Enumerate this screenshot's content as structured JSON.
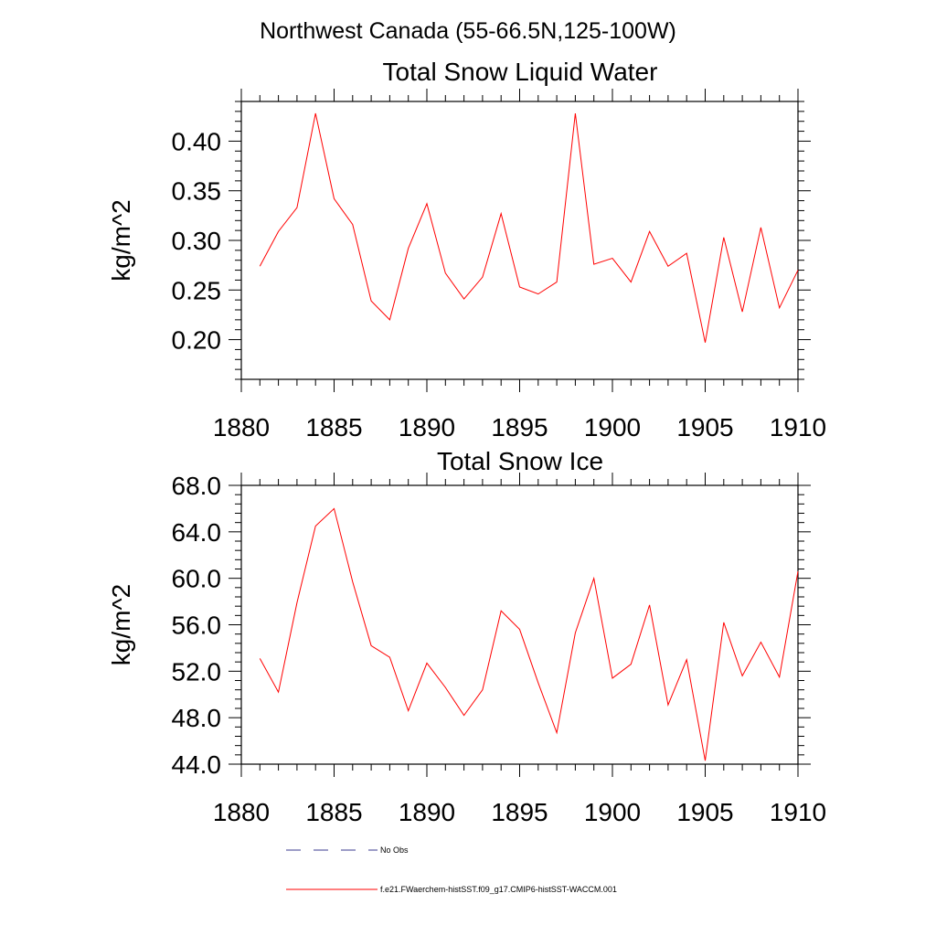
{
  "figure": {
    "suptitle": "Northwest Canada (55-66.5N,125-100W)"
  },
  "chart_data": [
    {
      "type": "line",
      "title": "Total Snow Liquid Water",
      "xlabel": "",
      "ylabel": "kg/m^2",
      "xlim": [
        1880,
        1910
      ],
      "ylim": [
        0.16,
        0.44
      ],
      "xticks": [
        1880,
        1885,
        1890,
        1895,
        1900,
        1905,
        1910
      ],
      "xtick_labels": [
        "1880",
        "1885",
        "1890",
        "1895",
        "1900",
        "1905",
        "1910"
      ],
      "yticks": [
        0.2,
        0.25,
        0.3,
        0.35,
        0.4
      ],
      "ytick_labels": [
        "0.20",
        "0.25",
        "0.30",
        "0.35",
        "0.40"
      ],
      "x": [
        1881,
        1882,
        1883,
        1884,
        1885,
        1886,
        1887,
        1888,
        1889,
        1890,
        1891,
        1892,
        1893,
        1894,
        1895,
        1896,
        1897,
        1898,
        1899,
        1900,
        1901,
        1902,
        1903,
        1904,
        1905,
        1906,
        1907,
        1908,
        1909,
        1910
      ],
      "series": [
        {
          "name": "f.e21.FWaerchem-histSST.f09_g17.CMIP6-histSST-WACCM.001",
          "color": "#ff0000",
          "values": [
            0.274,
            0.309,
            0.333,
            0.428,
            0.342,
            0.316,
            0.239,
            0.22,
            0.292,
            0.337,
            0.267,
            0.241,
            0.263,
            0.327,
            0.253,
            0.246,
            0.258,
            0.428,
            0.276,
            0.282,
            0.258,
            0.309,
            0.274,
            0.287,
            0.197,
            0.303,
            0.228,
            0.313,
            0.232,
            0.27
          ]
        }
      ]
    },
    {
      "type": "line",
      "title": "Total Snow Ice",
      "xlabel": "",
      "ylabel": "kg/m^2",
      "xlim": [
        1880,
        1910
      ],
      "ylim": [
        44.0,
        68.0
      ],
      "xticks": [
        1880,
        1885,
        1890,
        1895,
        1900,
        1905,
        1910
      ],
      "xtick_labels": [
        "1880",
        "1885",
        "1890",
        "1895",
        "1900",
        "1905",
        "1910"
      ],
      "yticks": [
        44.0,
        48.0,
        52.0,
        56.0,
        60.0,
        64.0,
        68.0
      ],
      "ytick_labels": [
        "44.0",
        "48.0",
        "52.0",
        "56.0",
        "60.0",
        "64.0",
        "68.0"
      ],
      "x": [
        1881,
        1882,
        1883,
        1884,
        1885,
        1886,
        1887,
        1888,
        1889,
        1890,
        1891,
        1892,
        1893,
        1894,
        1895,
        1896,
        1897,
        1898,
        1899,
        1900,
        1901,
        1902,
        1903,
        1904,
        1905,
        1906,
        1907,
        1908,
        1909,
        1910
      ],
      "series": [
        {
          "name": "f.e21.FWaerchem-histSST.f09_g17.CMIP6-histSST-WACCM.001",
          "color": "#ff0000",
          "values": [
            53.1,
            50.2,
            57.9,
            64.5,
            66.0,
            59.7,
            54.2,
            53.2,
            48.6,
            52.7,
            50.6,
            48.2,
            50.4,
            57.2,
            55.6,
            51.0,
            46.7,
            55.3,
            60.0,
            51.4,
            52.6,
            57.7,
            49.1,
            53.0,
            44.3,
            56.2,
            51.6,
            54.5,
            51.5,
            60.6
          ]
        }
      ]
    }
  ],
  "legend": {
    "placement": "bottom",
    "items": [
      {
        "label": "No Obs",
        "color": "#3b3b8f",
        "style": "dashed"
      },
      {
        "label": "f.e21.FWaerchem-histSST.f09_g17.CMIP6-histSST-WACCM.001",
        "color": "#ff0000",
        "style": "solid"
      }
    ]
  }
}
